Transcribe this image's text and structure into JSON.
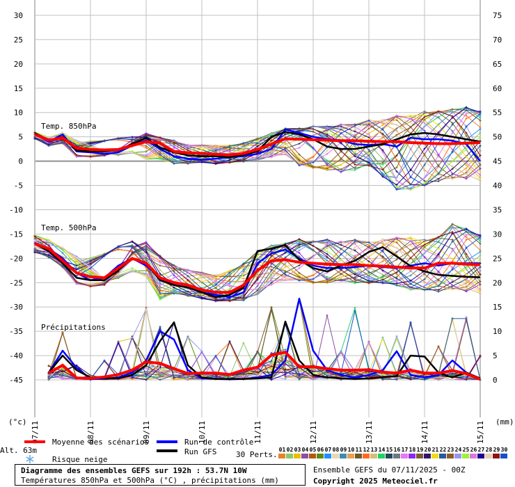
{
  "chart_data": {
    "type": "line",
    "title": "Diagramme des ensembles GEFS sur 192h : 53.7N 10W",
    "subtitle": "Températures 850hPa et 500hPa (°C) , précipitations (mm)",
    "run_info": "Ensemble GEFS du 07/11/2025 - 00Z",
    "copyright": "Copyright 2025 Meteociel.fr",
    "altitude": "Alt. 63m",
    "left_unit": "(°c)",
    "right_unit": "(mm)",
    "left_axis": {
      "ticks": [
        "30",
        "25",
        "20",
        "15",
        "10",
        "5",
        "0",
        "-5",
        "-10",
        "-15",
        "-20",
        "-25",
        "-30",
        "-35",
        "-40",
        "-45"
      ],
      "range": [
        -45,
        30
      ]
    },
    "right_axis": {
      "ticks": [
        "75",
        "70",
        "65",
        "60",
        "55",
        "50",
        "45",
        "40",
        "35",
        "30",
        "25",
        "20",
        "15",
        "10",
        "5",
        "0"
      ],
      "range": [
        0,
        75
      ]
    },
    "x_ticks": [
      "07/11",
      "08/11",
      "09/11",
      "10/11",
      "11/11",
      "12/11",
      "13/11",
      "14/11",
      "15/11"
    ],
    "time_step_hours": 6,
    "grid": true,
    "panel_labels": {
      "t850": "Temp. 850hPa",
      "t500": "Temp. 500hPa",
      "precip": "Précipitations"
    },
    "legend": {
      "mean": "Moyenne des scénarios",
      "control": "Run de contrôle",
      "gfs": "Run GFS",
      "snow": "Risque neige",
      "perts": "30 Perts.",
      "pert_numbers": [
        "01",
        "02",
        "03",
        "04",
        "05",
        "06",
        "07",
        "08",
        "09",
        "10",
        "11",
        "12",
        "13",
        "14",
        "15",
        "16",
        "17",
        "18",
        "19",
        "20",
        "21",
        "22",
        "23",
        "24",
        "25",
        "26",
        "27",
        "28",
        "29",
        "30"
      ]
    },
    "colors": {
      "mean": "#ff0000",
      "control": "#0000ff",
      "gfs": "#000000",
      "grid": "#c0c0c0",
      "zero": "#909090",
      "snow": "#5fa8e8",
      "perts": [
        "#e8822e",
        "#8dc86c",
        "#e8c000",
        "#8c4ca8",
        "#b05a10",
        "#5a8c10",
        "#1e90ff",
        "#e8d8b0",
        "#3c8cb4",
        "#e8a050",
        "#6c5a28",
        "#ff6a1e",
        "#d2be78",
        "#1ed264",
        "#28465a",
        "#6c7882",
        "#e678f0",
        "#8c28f0",
        "#7c5a32",
        "#32146e",
        "#f0dc14",
        "#285a96",
        "#8c5a28",
        "#9696f0",
        "#a0f03c",
        "#dc78dc",
        "#1e0096",
        "#e6d2b4",
        "#8c1414",
        "#1450c8"
      ]
    },
    "series": {
      "t850": {
        "mean": [
          5.5,
          4.3,
          4.8,
          2.7,
          2.4,
          2.3,
          2.4,
          3.2,
          4,
          3.7,
          2,
          1.7,
          1.6,
          1.4,
          1.3,
          1.6,
          2.4,
          3.5,
          4.6,
          4.5,
          4.4,
          4.3,
          4.2,
          4.2,
          4.1,
          4,
          4,
          3.8,
          3.7,
          3.6,
          3.6,
          3.7,
          3.8
        ],
        "control": [
          5.6,
          4,
          5.5,
          2,
          1.8,
          1.5,
          1.8,
          3.2,
          4.3,
          2.5,
          1,
          0.5,
          0.3,
          0.5,
          0.8,
          1,
          1.5,
          2.5,
          6.5,
          5.8,
          5,
          4.5,
          4.3,
          3.5,
          3.3,
          3.5,
          3,
          4.8,
          4.5,
          4.5,
          4.2,
          3.5,
          0
        ],
        "gfs": [
          5.8,
          4.2,
          5,
          2.2,
          2,
          2,
          2.3,
          3.5,
          4.8,
          2.8,
          1.8,
          1.2,
          1,
          1,
          0.8,
          1.3,
          2,
          5,
          6,
          5.5,
          4.5,
          3,
          2.5,
          2.5,
          3,
          3.5,
          4.5,
          5.5,
          5.8,
          5.5,
          5,
          4.5,
          4
        ],
        "members_min": [
          4.5,
          3,
          3.5,
          0.7,
          0.7,
          0.7,
          1,
          1.5,
          0,
          0,
          -0.8,
          -0.8,
          -0.5,
          -0.8,
          -0.5,
          -0.3,
          0,
          0.5,
          1,
          -1.5,
          -2,
          -2.5,
          -3,
          -2.5,
          -1.5,
          -4,
          -7,
          -7,
          -6,
          -5,
          -4.5,
          -4.5,
          -5
        ],
        "members_max": [
          6,
          5,
          6,
          4.5,
          4.5,
          4.5,
          5,
          5.5,
          6,
          5,
          4.5,
          3.5,
          3.5,
          3.5,
          3.5,
          4,
          5,
          6,
          7,
          7,
          7.5,
          7.5,
          8,
          8,
          9,
          9,
          10,
          10,
          11,
          11,
          11.5,
          12,
          11
        ]
      },
      "t500": {
        "mean": [
          -17,
          -18,
          -20.5,
          -23,
          -23.8,
          -24,
          -22,
          -20,
          -21,
          -24,
          -25,
          -25.5,
          -26.5,
          -27,
          -27,
          -25.5,
          -22.5,
          -20.5,
          -20.3,
          -20.8,
          -21,
          -21.2,
          -21.3,
          -21.3,
          -21.5,
          -21.6,
          -21.8,
          -22,
          -22,
          -21,
          -21,
          -21.2,
          -21.3
        ],
        "control": [
          -16.8,
          -18,
          -20,
          -23,
          -24.5,
          -24,
          -21.5,
          -20,
          -21.5,
          -24,
          -25.5,
          -26,
          -27,
          -27.5,
          -28,
          -27,
          -21,
          -19,
          -18.2,
          -20,
          -21.5,
          -22,
          -22,
          -21.8,
          -21.5,
          -21.8,
          -22,
          -21.5,
          -21,
          -21.5,
          -21,
          -21,
          -21
        ],
        "gfs": [
          -17,
          -18.5,
          -21,
          -24,
          -24.5,
          -24.5,
          -22.5,
          -20,
          -21,
          -24.5,
          -25.5,
          -26,
          -27,
          -28,
          -27.5,
          -26,
          -18.5,
          -18,
          -17.3,
          -20.3,
          -22,
          -22.7,
          -21.5,
          -20.5,
          -18.7,
          -17.7,
          -19.6,
          -21.6,
          -22.7,
          -23.4,
          -23.6,
          -23.8,
          -23.9
        ],
        "members_min": [
          -19,
          -20,
          -22,
          -25.5,
          -26,
          -26,
          -24.5,
          -23,
          -24,
          -29,
          -27.5,
          -28,
          -28.5,
          -29,
          -29,
          -29,
          -28,
          -26,
          -25,
          -25,
          -25.5,
          -25.5,
          -25,
          -25.5,
          -25.5,
          -25.5,
          -26,
          -27,
          -27,
          -27.5,
          -27,
          -27.5,
          -28
        ],
        "members_max": [
          -15,
          -16,
          -17.5,
          -19,
          -19,
          -18.5,
          -17,
          -15.5,
          -16,
          -19,
          -21,
          -22,
          -22.5,
          -23,
          -22,
          -20.5,
          -18,
          -17,
          -16.5,
          -15.5,
          -16,
          -15.5,
          -16,
          -15.5,
          -16,
          -15.5,
          -15,
          -15,
          -15.5,
          -15,
          -12,
          -13,
          -14.5
        ]
      },
      "precip_mm": {
        "mean": [
          null,
          1.4,
          3,
          0.4,
          0.3,
          0.6,
          1.1,
          2,
          3.7,
          3.4,
          2.3,
          1.3,
          1.4,
          1.4,
          1.1,
          2,
          2.6,
          5.1,
          5.7,
          2.7,
          2.7,
          2.3,
          2,
          2,
          2.1,
          1.6,
          1.4,
          2,
          1.4,
          1.4,
          1.9,
          1.3,
          0.1
        ],
        "control": [
          null,
          1.5,
          6,
          2.5,
          0.2,
          0.2,
          0.5,
          1.5,
          4,
          10,
          8.3,
          2,
          0.3,
          0.2,
          0.1,
          0.2,
          0.5,
          1,
          4,
          16.7,
          6,
          2,
          1,
          0.5,
          1,
          2,
          5.9,
          1,
          0.5,
          1,
          4,
          1.5,
          0.2
        ],
        "gfs": [
          null,
          1.5,
          5,
          2,
          0.5,
          0.3,
          0.3,
          1,
          3,
          8,
          11.8,
          3,
          0.5,
          0.2,
          0.2,
          0.2,
          0.3,
          0.5,
          12,
          4,
          1,
          0.5,
          0.3,
          0.2,
          0.3,
          0.5,
          0.8,
          5,
          4.8,
          1.5,
          0.5,
          1.5,
          0.3
        ],
        "members_max": [
          null,
          3,
          10,
          3,
          1,
          4,
          8,
          9,
          15,
          11,
          12,
          9,
          6,
          5,
          8,
          8,
          6,
          15,
          12,
          17,
          17,
          14,
          6,
          15,
          8,
          9,
          9,
          12,
          10,
          7,
          13,
          13,
          5
        ]
      }
    }
  }
}
